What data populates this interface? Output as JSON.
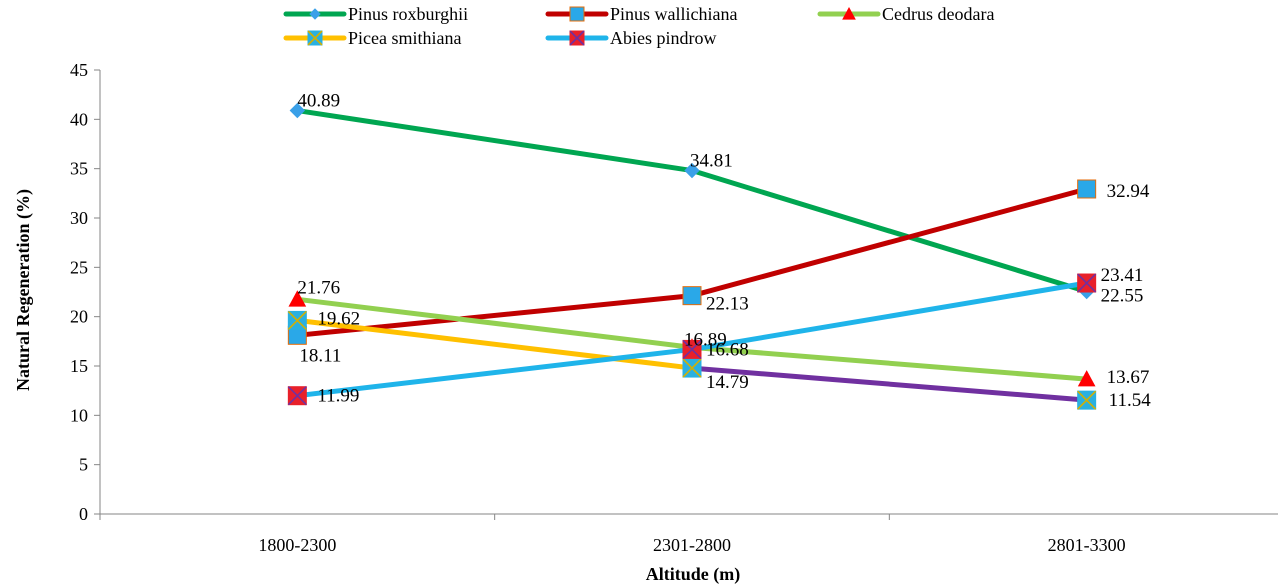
{
  "chart_data": {
    "type": "line",
    "title": "",
    "xlabel": "Altitude (m)",
    "ylabel": "Natural Regeneration (%)",
    "categories": [
      "1800-2300",
      "2301-2800",
      "2801-3300"
    ],
    "ylim": [
      0,
      45
    ],
    "yticks": [
      "0",
      "5",
      "10",
      "15",
      "20",
      "25",
      "30",
      "35",
      "40",
      "45"
    ],
    "grid": false,
    "legend_position": "top",
    "series": [
      {
        "name": "Pinus roxburghii",
        "values": [
          40.89,
          34.81,
          22.55
        ],
        "labels": [
          "40.89",
          "34.81",
          "22.55"
        ],
        "line_color": "#00a651",
        "marker": "diamond",
        "marker_color": "#3aa0e8"
      },
      {
        "name": "Pinus wallichiana",
        "values": [
          18.11,
          22.13,
          32.94
        ],
        "labels": [
          "18.11",
          "22.13",
          "32.94"
        ],
        "line_color": "#c00000",
        "marker": "square",
        "marker_color": "#2aa8e8"
      },
      {
        "name": "Cedrus deodara",
        "values": [
          21.76,
          16.89,
          13.67
        ],
        "labels": [
          "21.76",
          "16.89",
          "13.67"
        ],
        "line_color": "#92d050",
        "marker": "triangle",
        "marker_color": "#ff0000"
      },
      {
        "name": "Picea smithiana",
        "values": [
          19.62,
          14.79,
          11.54
        ],
        "labels": [
          "19.62",
          "14.79",
          "11.54"
        ],
        "line_color": "#ffc000",
        "line_colors": [
          "#ffc000",
          "#7030a0"
        ],
        "marker": "square-x",
        "marker_color": "#2ab0e0"
      },
      {
        "name": "Abies pindrow",
        "values": [
          11.99,
          16.68,
          23.41
        ],
        "labels": [
          "11.99",
          "16.68",
          "23.41"
        ],
        "line_color": "#1fb4ea",
        "marker": "square-x",
        "marker_color": "#e8202a"
      }
    ]
  }
}
